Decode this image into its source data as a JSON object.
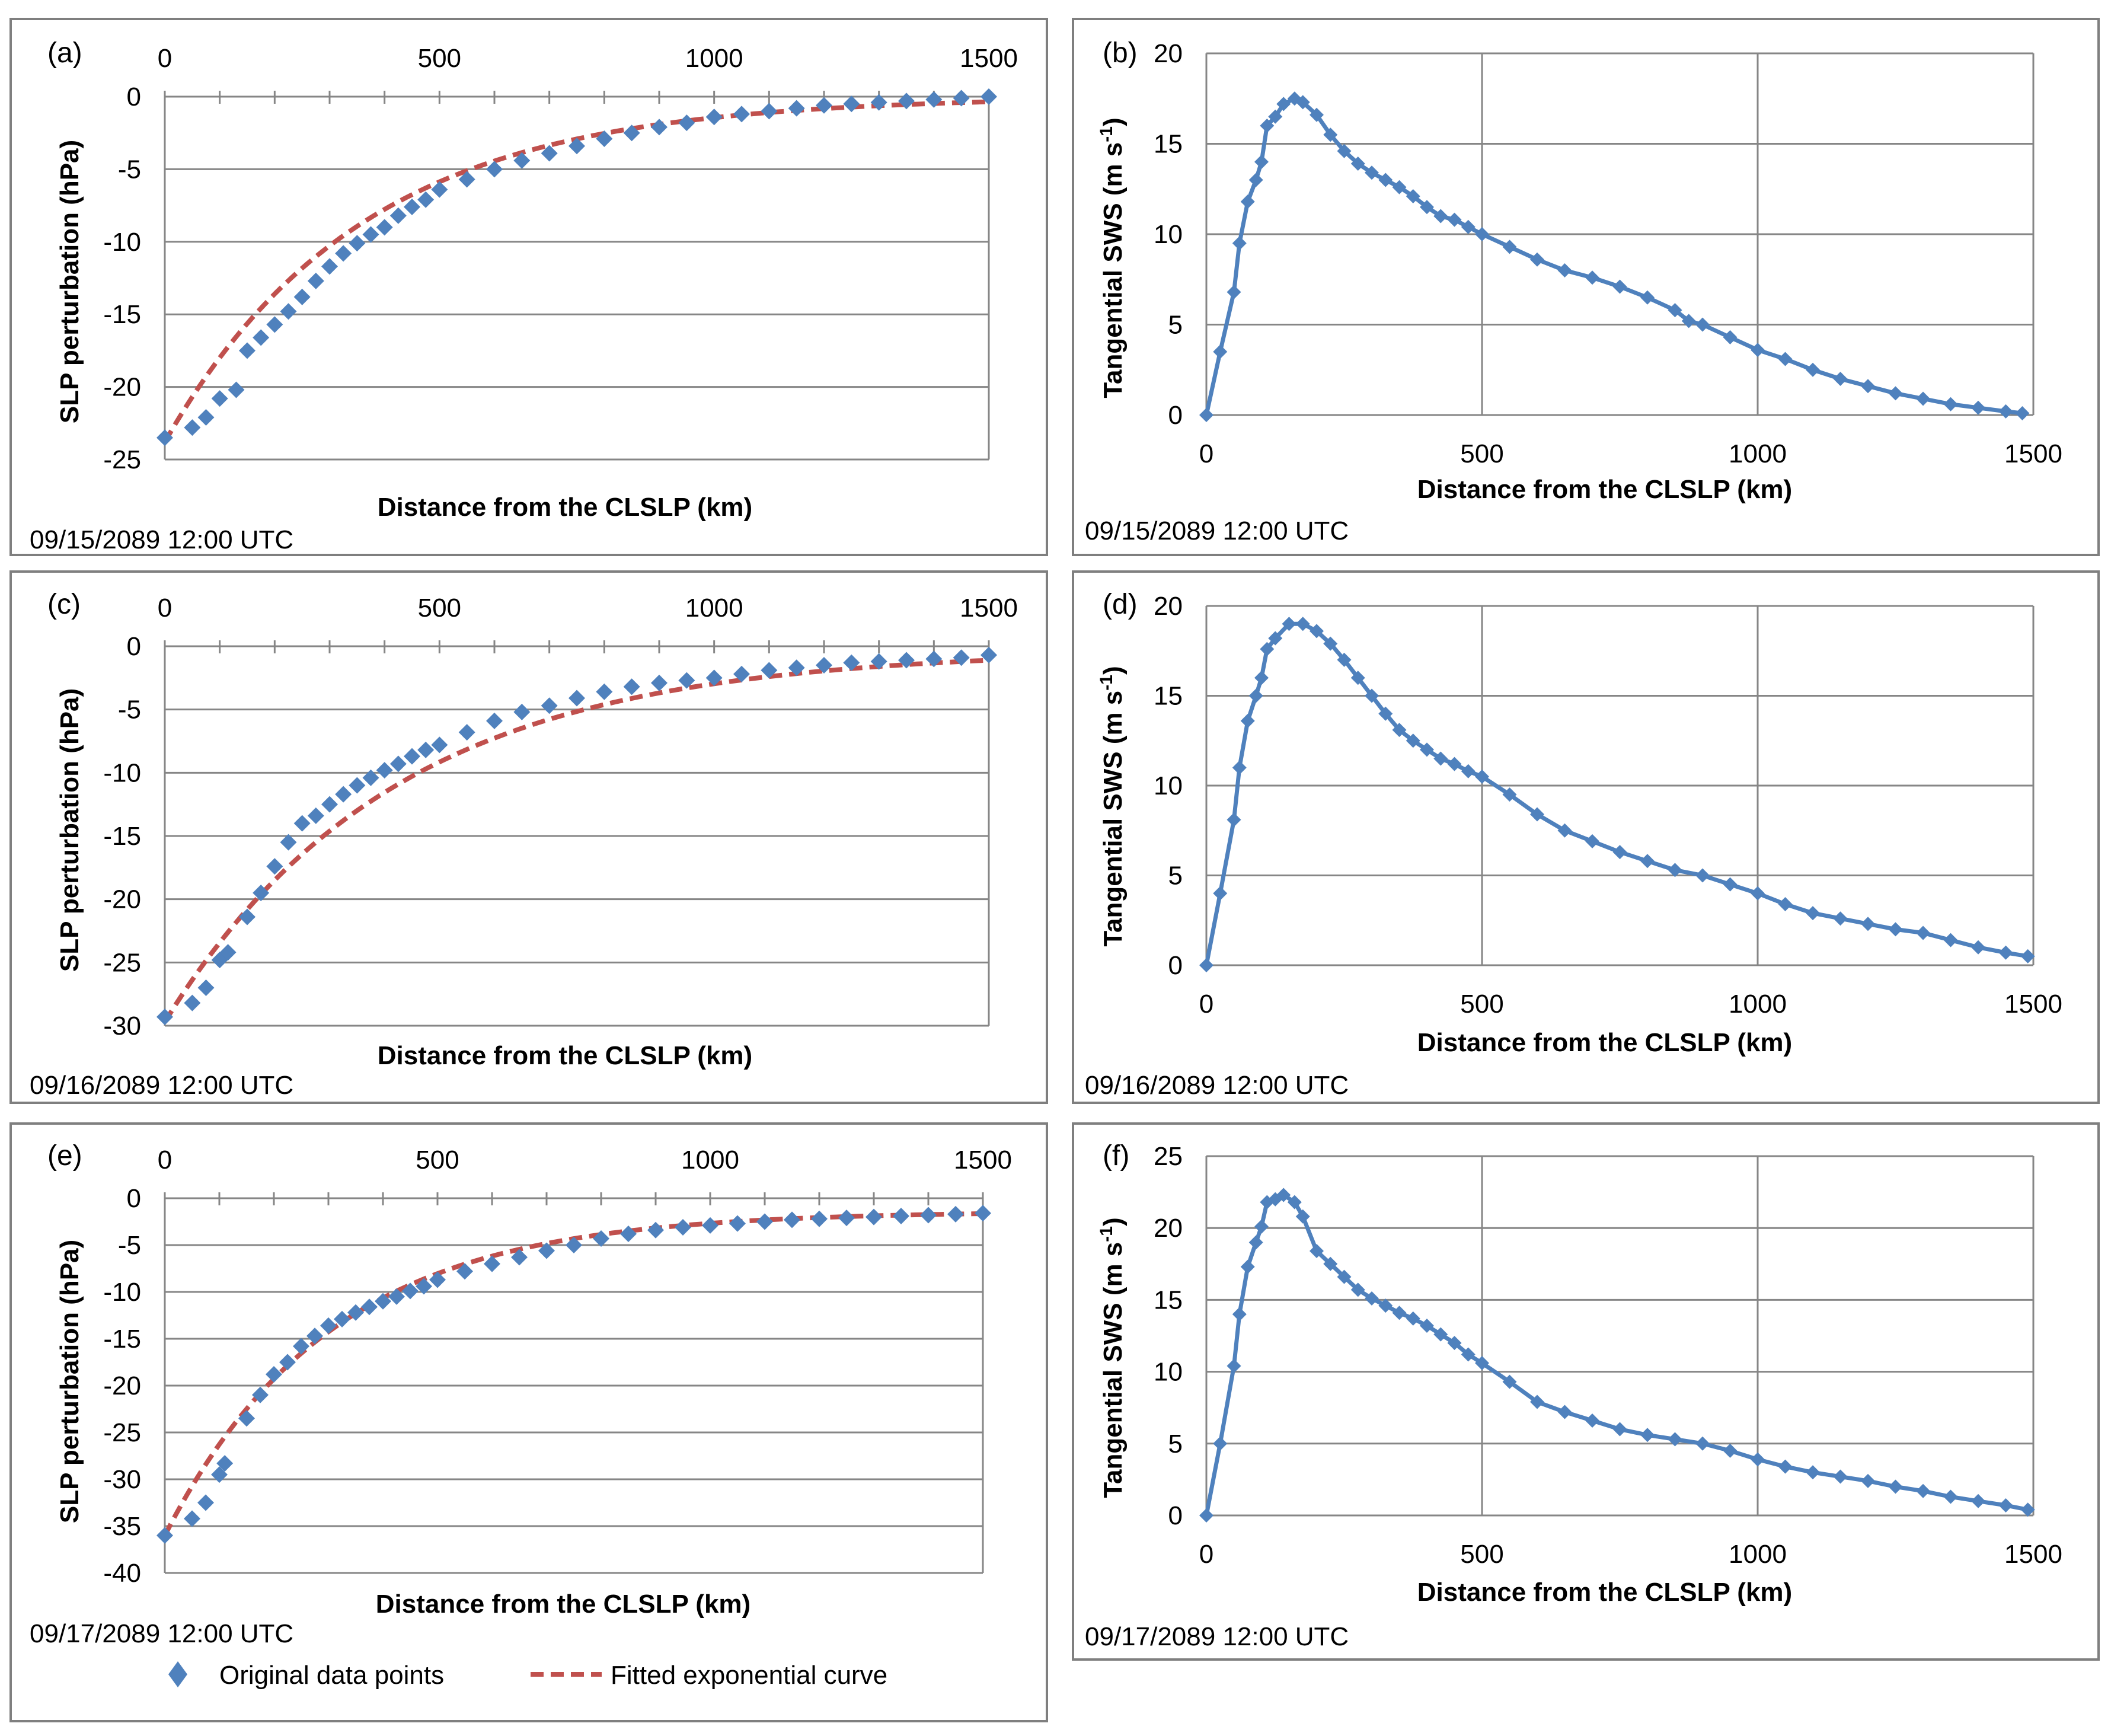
{
  "colors": {
    "points": "#4F81BD",
    "fit": "#C0504D",
    "grid": "#868686",
    "frame": "#7f7f7f",
    "text": "#000000"
  },
  "legend": {
    "points_label": "Original data points",
    "fit_label": "Fitted exponential curve",
    "points_icon": "diamond-marker-icon",
    "fit_icon": "dashed-line-icon"
  },
  "chart_data": [
    {
      "id": "a",
      "type": "scatter",
      "panel_label": "(a)",
      "timestamp": "09/15/2089 12:00 UTC",
      "xlabel": "Distance from the CLSLP (km)",
      "ylabel": "SLP perturbation (hPa)",
      "xlim": [
        0,
        1500
      ],
      "ylim": [
        -25,
        0
      ],
      "x_ticks": [
        0,
        500,
        1000,
        1500
      ],
      "y_ticks": [
        0,
        -5,
        -10,
        -15,
        -20,
        -25
      ],
      "x_axis_position": "top",
      "grid": "horizontal",
      "fit": {
        "a": -23.8,
        "b": 0.0028
      },
      "series": [
        {
          "name": "Original data points",
          "x": [
            0,
            50,
            75,
            100,
            130,
            150,
            175,
            200,
            225,
            250,
            275,
            300,
            325,
            350,
            375,
            400,
            425,
            450,
            475,
            500,
            550,
            600,
            650,
            700,
            750,
            800,
            850,
            900,
            950,
            1000,
            1050,
            1100,
            1150,
            1200,
            1250,
            1300,
            1350,
            1400,
            1450,
            1500
          ],
          "y": [
            -23.5,
            -22.8,
            -22.1,
            -20.8,
            -20.2,
            -17.5,
            -16.6,
            -15.7,
            -14.8,
            -13.8,
            -12.7,
            -11.7,
            -10.8,
            -10.1,
            -9.5,
            -9.0,
            -8.2,
            -7.6,
            -7.1,
            -6.4,
            -5.7,
            -5.0,
            -4.4,
            -3.9,
            -3.4,
            -2.9,
            -2.5,
            -2.1,
            -1.8,
            -1.4,
            -1.2,
            -1.0,
            -0.8,
            -0.6,
            -0.5,
            -0.4,
            -0.3,
            -0.2,
            -0.1,
            0.0
          ]
        },
        {
          "name": "Fitted exponential curve"
        }
      ]
    },
    {
      "id": "b",
      "type": "line",
      "panel_label": "(b)",
      "timestamp": "09/15/2089 12:00 UTC",
      "xlabel": "Distance from the CLSLP (km)",
      "ylabel": "Tangential SWS (m s-1)",
      "xlim": [
        0,
        1500
      ],
      "ylim": [
        0,
        20
      ],
      "x_ticks": [
        0,
        500,
        1000,
        1500
      ],
      "y_ticks": [
        0,
        5,
        10,
        15,
        20
      ],
      "x_axis_position": "bottom",
      "grid": "both",
      "series": [
        {
          "name": "",
          "x": [
            0,
            25,
            50,
            60,
            75,
            90,
            100,
            110,
            125,
            140,
            160,
            175,
            200,
            225,
            250,
            275,
            300,
            325,
            350,
            375,
            400,
            425,
            450,
            475,
            500,
            550,
            600,
            650,
            700,
            750,
            800,
            850,
            875,
            900,
            950,
            1000,
            1050,
            1100,
            1150,
            1200,
            1250,
            1300,
            1350,
            1400,
            1450,
            1480
          ],
          "y": [
            0,
            3.5,
            6.8,
            9.5,
            11.8,
            13.0,
            14.0,
            16.0,
            16.5,
            17.2,
            17.5,
            17.3,
            16.6,
            15.5,
            14.6,
            13.9,
            13.4,
            13.0,
            12.6,
            12.1,
            11.5,
            11.0,
            10.8,
            10.4,
            10.0,
            9.3,
            8.6,
            8.0,
            7.6,
            7.1,
            6.5,
            5.8,
            5.2,
            5.0,
            4.3,
            3.6,
            3.1,
            2.5,
            2.0,
            1.6,
            1.2,
            0.9,
            0.6,
            0.4,
            0.2,
            0.1
          ]
        }
      ]
    },
    {
      "id": "c",
      "type": "scatter",
      "panel_label": "(c)",
      "timestamp": "09/16/2089 12:00 UTC",
      "xlabel": "Distance from the CLSLP (km)",
      "ylabel": "SLP perturbation (hPa)",
      "xlim": [
        0,
        1500
      ],
      "ylim": [
        -30,
        0
      ],
      "x_ticks": [
        0,
        500,
        1000,
        1500
      ],
      "y_ticks": [
        0,
        -5,
        -10,
        -15,
        -20,
        -25,
        -30
      ],
      "x_axis_position": "top",
      "grid": "horizontal",
      "fit": {
        "a": -29.4,
        "b": 0.0024,
        "c": -0.3
      },
      "series": [
        {
          "name": "Original data points",
          "x": [
            0,
            50,
            75,
            100,
            115,
            150,
            175,
            200,
            225,
            250,
            275,
            300,
            325,
            350,
            375,
            400,
            425,
            450,
            475,
            500,
            550,
            600,
            650,
            700,
            750,
            800,
            850,
            900,
            950,
            1000,
            1050,
            1100,
            1150,
            1200,
            1250,
            1300,
            1350,
            1400,
            1450,
            1500
          ],
          "y": [
            -29.3,
            -28.2,
            -27.0,
            -24.8,
            -24.2,
            -21.4,
            -19.5,
            -17.4,
            -15.5,
            -14.0,
            -13.4,
            -12.5,
            -11.7,
            -11.0,
            -10.4,
            -9.8,
            -9.3,
            -8.7,
            -8.2,
            -7.8,
            -6.8,
            -5.9,
            -5.2,
            -4.7,
            -4.1,
            -3.6,
            -3.2,
            -2.9,
            -2.7,
            -2.5,
            -2.2,
            -1.9,
            -1.7,
            -1.5,
            -1.3,
            -1.2,
            -1.1,
            -1.0,
            -0.9,
            -0.7
          ]
        },
        {
          "name": "Fitted exponential curve"
        }
      ]
    },
    {
      "id": "d",
      "type": "line",
      "panel_label": "(d)",
      "timestamp": "09/16/2089 12:00 UTC",
      "xlabel": "Distance from the CLSLP (km)",
      "ylabel": "Tangential SWS (m s-1)",
      "xlim": [
        0,
        1500
      ],
      "ylim": [
        0,
        20
      ],
      "x_ticks": [
        0,
        500,
        1000,
        1500
      ],
      "y_ticks": [
        0,
        5,
        10,
        15,
        20
      ],
      "x_axis_position": "bottom",
      "grid": "both",
      "series": [
        {
          "name": "",
          "x": [
            0,
            25,
            50,
            60,
            75,
            90,
            100,
            110,
            125,
            150,
            175,
            200,
            225,
            250,
            275,
            300,
            325,
            350,
            375,
            400,
            425,
            450,
            475,
            500,
            550,
            600,
            650,
            700,
            750,
            800,
            850,
            900,
            950,
            1000,
            1050,
            1100,
            1150,
            1200,
            1250,
            1300,
            1350,
            1400,
            1450,
            1490
          ],
          "y": [
            0,
            4.0,
            8.1,
            11.0,
            13.6,
            15.0,
            16.0,
            17.6,
            18.2,
            19.0,
            19.0,
            18.6,
            17.9,
            17.0,
            16.0,
            15.0,
            14.0,
            13.1,
            12.5,
            12.0,
            11.5,
            11.2,
            10.8,
            10.5,
            9.5,
            8.4,
            7.5,
            6.9,
            6.3,
            5.8,
            5.3,
            5.0,
            4.5,
            4.0,
            3.4,
            2.9,
            2.6,
            2.3,
            2.0,
            1.8,
            1.4,
            1.0,
            0.7,
            0.5
          ]
        }
      ]
    },
    {
      "id": "e",
      "type": "scatter",
      "panel_label": "(e)",
      "timestamp": "09/17/2089 12:00 UTC",
      "xlabel": "Distance from the CLSLP (km)",
      "ylabel": "SLP perturbation (hPa)",
      "xlim": [
        0,
        1500
      ],
      "ylim": [
        -40,
        0
      ],
      "x_ticks": [
        0,
        500,
        1000,
        1500
      ],
      "y_ticks": [
        0,
        -5,
        -10,
        -15,
        -20,
        -25,
        -30,
        -35,
        -40
      ],
      "x_axis_position": "top",
      "grid": "horizontal",
      "fit": {
        "a": -34.6,
        "b": 0.0033,
        "c": -1.4
      },
      "series": [
        {
          "name": "Original data points",
          "x": [
            0,
            50,
            75,
            100,
            110,
            150,
            175,
            200,
            225,
            250,
            275,
            300,
            325,
            350,
            375,
            400,
            425,
            450,
            475,
            500,
            550,
            600,
            650,
            700,
            750,
            800,
            850,
            900,
            950,
            1000,
            1050,
            1100,
            1150,
            1200,
            1250,
            1300,
            1350,
            1400,
            1450,
            1500
          ],
          "y": [
            -36.0,
            -34.2,
            -32.5,
            -29.5,
            -28.3,
            -23.5,
            -21.0,
            -18.8,
            -17.5,
            -15.8,
            -14.7,
            -13.6,
            -12.9,
            -12.2,
            -11.6,
            -11.0,
            -10.5,
            -9.9,
            -9.4,
            -8.7,
            -7.8,
            -7.0,
            -6.3,
            -5.6,
            -5.0,
            -4.3,
            -3.8,
            -3.4,
            -3.1,
            -2.9,
            -2.7,
            -2.5,
            -2.3,
            -2.2,
            -2.1,
            -2.0,
            -1.9,
            -1.8,
            -1.7,
            -1.6
          ]
        },
        {
          "name": "Fitted exponential curve"
        }
      ]
    },
    {
      "id": "f",
      "type": "line",
      "panel_label": "(f)",
      "timestamp": "09/17/2089 12:00 UTC",
      "xlabel": "Distance from the CLSLP (km)",
      "ylabel": "Tangential SWS (m s-1)",
      "xlim": [
        0,
        1500
      ],
      "ylim": [
        0,
        25
      ],
      "x_ticks": [
        0,
        500,
        1000,
        1500
      ],
      "y_ticks": [
        0,
        5,
        10,
        15,
        20,
        25
      ],
      "x_axis_position": "bottom",
      "grid": "both",
      "series": [
        {
          "name": "",
          "x": [
            0,
            25,
            50,
            60,
            75,
            90,
            100,
            110,
            125,
            140,
            160,
            175,
            200,
            225,
            250,
            275,
            300,
            325,
            350,
            375,
            400,
            425,
            450,
            475,
            500,
            550,
            600,
            650,
            700,
            750,
            800,
            850,
            900,
            950,
            1000,
            1050,
            1100,
            1150,
            1200,
            1250,
            1300,
            1350,
            1400,
            1450,
            1490
          ],
          "y": [
            0,
            5.0,
            10.4,
            14.0,
            17.3,
            19.0,
            20.1,
            21.8,
            22.0,
            22.3,
            21.8,
            20.8,
            18.4,
            17.5,
            16.6,
            15.7,
            15.1,
            14.6,
            14.1,
            13.7,
            13.2,
            12.6,
            12.0,
            11.2,
            10.6,
            9.3,
            7.9,
            7.2,
            6.6,
            6.0,
            5.6,
            5.3,
            5.0,
            4.5,
            3.9,
            3.4,
            3.0,
            2.7,
            2.4,
            2.0,
            1.7,
            1.3,
            1.0,
            0.7,
            0.4
          ]
        }
      ]
    }
  ]
}
